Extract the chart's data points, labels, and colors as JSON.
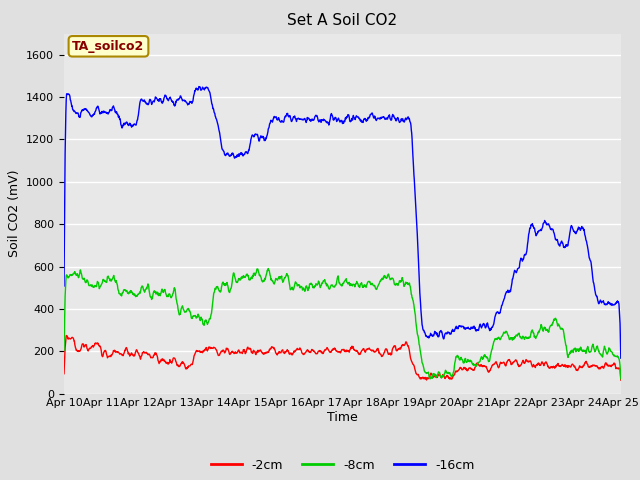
{
  "title": "Set A Soil CO2",
  "ylabel": "Soil CO2 (mV)",
  "xlabel": "Time",
  "annotation": "TA_soilco2",
  "annotation_bg": "#ffffcc",
  "annotation_border": "#aa8800",
  "annotation_text_color": "#880000",
  "legend_labels": [
    "-2cm",
    "-8cm",
    "-16cm"
  ],
  "legend_colors": [
    "#ff0000",
    "#00cc00",
    "#0000ff"
  ],
  "ylim": [
    0,
    1700
  ],
  "yticks": [
    0,
    200,
    400,
    600,
    800,
    1000,
    1200,
    1400,
    1600
  ],
  "xtick_labels": [
    "Apr 10",
    "Apr 11",
    "Apr 12",
    "Apr 13",
    "Apr 14",
    "Apr 15",
    "Apr 16",
    "Apr 17",
    "Apr 18",
    "Apr 19",
    "Apr 20",
    "Apr 21",
    "Apr 22",
    "Apr 23",
    "Apr 24",
    "Apr 25"
  ],
  "bg_color": "#e0e0e0",
  "plot_bg_color": "#e8e8e8",
  "grid_color": "#ffffff",
  "title_fontsize": 11,
  "label_fontsize": 9,
  "tick_fontsize": 8,
  "line_width": 1.0,
  "n_points": 1500,
  "n_days": 15
}
